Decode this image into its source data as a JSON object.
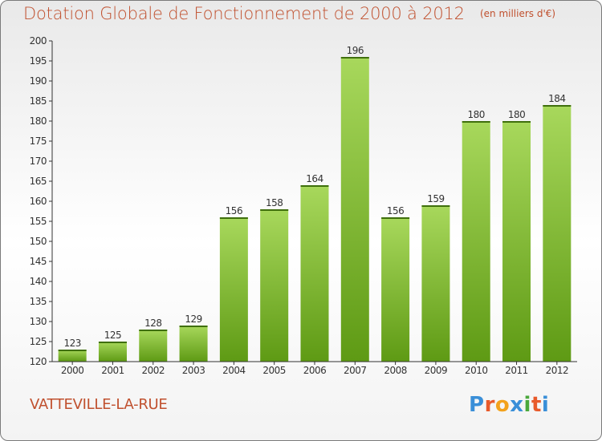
{
  "title": "Dotation Globale de Fonctionnement de 2000 à 2012",
  "unit_note": "(en milliers d'€)",
  "commune": "VATTEVILLE-LA-RUE",
  "logo": {
    "text": "Proxiti",
    "letter_colors": [
      "#3a8fd8",
      "#e85a2b",
      "#f3a21c",
      "#3a8fd8",
      "#4aa83c",
      "#e85a2b",
      "#3a8fd8"
    ]
  },
  "colors": {
    "title": "#c0502e",
    "bar_light": "#a8d85c",
    "bar_dark": "#5e9a14",
    "axis": "#333333",
    "grid_tick": "#333333"
  },
  "chart_data": {
    "type": "bar",
    "categories": [
      "2000",
      "2001",
      "2002",
      "2003",
      "2004",
      "2005",
      "2006",
      "2007",
      "2008",
      "2009",
      "2010",
      "2011",
      "2012"
    ],
    "values": [
      123,
      125,
      128,
      129,
      156,
      158,
      164,
      196,
      156,
      159,
      180,
      180,
      184
    ],
    "ylim": [
      120,
      200
    ],
    "ytick_step": 5,
    "xlabel": "",
    "ylabel": "",
    "grid": false,
    "data_labels": true
  }
}
